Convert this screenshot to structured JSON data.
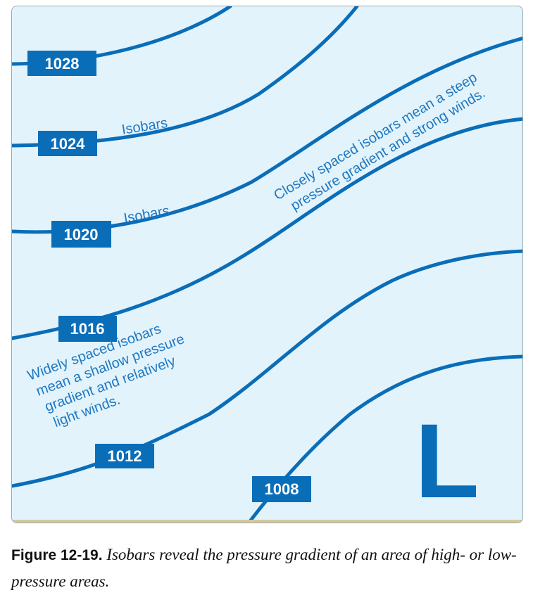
{
  "diagram": {
    "isobars": [
      {
        "value": "1028"
      },
      {
        "value": "1024"
      },
      {
        "value": "1020"
      },
      {
        "value": "1016"
      },
      {
        "value": "1012"
      },
      {
        "value": "1008"
      }
    ],
    "labels": {
      "isobars_upper": "Isobars",
      "isobars_lower": "Isobars",
      "steep_line1": "Closely spaced isobars mean a steep",
      "steep_line2": "pressure gradient and strong winds.",
      "shallow_line1": "Widely spaced isobars",
      "shallow_line2": "mean a shallow pressure",
      "shallow_line3": "gradient and relatively",
      "shallow_line4": "light winds.",
      "low_pressure": "L"
    },
    "colors": {
      "isobar": "#0a6db8",
      "background": "#e2f3fb",
      "annotation_text": "#1f78c2"
    }
  },
  "caption": {
    "label": "Figure 12-19.",
    "text": "Isobars reveal the pressure gradient of an area of high- or low-pressure areas."
  }
}
